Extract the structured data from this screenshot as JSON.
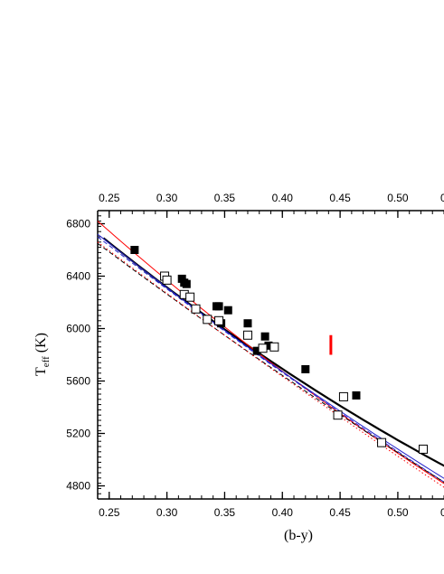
{
  "chart_data": {
    "type": "scatter",
    "title": "",
    "xlabel": "(b-y)",
    "ylabel": "T",
    "ylabel_sub": "eff",
    "ylabel_unit": " (K)",
    "xlim": [
      0.24,
      0.54
    ],
    "ylim": [
      4700,
      6900
    ],
    "x_ticks": [
      0.25,
      0.3,
      0.35,
      0.4,
      0.45,
      0.5
    ],
    "x_tick_labels": [
      "0.25",
      "0.30",
      "0.35",
      "0.40",
      "0.45",
      "0.50"
    ],
    "x_edge_label": "0",
    "y_ticks": [
      4800,
      5200,
      5600,
      6000,
      6400,
      6800
    ],
    "y_tick_labels": [
      "4800",
      "5200",
      "5600",
      "6000",
      "6400",
      "6800"
    ],
    "grid": false,
    "top_axis_mirrors_bottom": true,
    "series": [
      {
        "marker": "filled-square",
        "color": "#000000",
        "x": [
          0.272,
          0.313,
          0.315,
          0.317,
          0.343,
          0.345,
          0.347,
          0.353,
          0.37,
          0.378,
          0.385,
          0.388,
          0.42,
          0.464
        ],
        "y": [
          6600,
          6380,
          6350,
          6340,
          6170,
          6170,
          6040,
          6140,
          6040,
          5830,
          5940,
          5870,
          5690,
          5490
        ]
      },
      {
        "marker": "open-square",
        "color": "#000000",
        "x": [
          0.298,
          0.3,
          0.315,
          0.32,
          0.325,
          0.335,
          0.345,
          0.37,
          0.383,
          0.393,
          0.448,
          0.453,
          0.486,
          0.522
        ],
        "y": [
          6400,
          6370,
          6260,
          6240,
          6150,
          6070,
          6060,
          5950,
          5850,
          5860,
          5340,
          5480,
          5130,
          5080
        ]
      }
    ],
    "curves": [
      {
        "style": "solid",
        "color": "#000000",
        "width": 2.2,
        "x": [
          0.245,
          0.545
        ],
        "y": [
          6690,
          4930
        ],
        "bend": 0.05
      },
      {
        "style": "solid",
        "color": "#ff0000",
        "width": 1,
        "x": [
          0.24,
          0.545
        ],
        "y": [
          6820,
          4790
        ],
        "bend": 0.04
      },
      {
        "style": "solid",
        "color": "#2222cc",
        "width": 1,
        "x": [
          0.24,
          0.545
        ],
        "y": [
          6720,
          4830
        ],
        "bend": 0.03
      },
      {
        "style": "dashed",
        "color": "#2222cc",
        "width": 1,
        "x": [
          0.24,
          0.545
        ],
        "y": [
          6700,
          4800
        ],
        "bend": 0.02
      },
      {
        "style": "dashed",
        "color": "#000000",
        "width": 1,
        "x": [
          0.24,
          0.545
        ],
        "y": [
          6650,
          4800
        ],
        "bend": 0.02
      },
      {
        "style": "dotted",
        "color": "#ff0000",
        "width": 1,
        "x": [
          0.24,
          0.545
        ],
        "y": [
          6660,
          4760
        ],
        "bend": 0.015
      }
    ],
    "error_bar": {
      "color": "#ff0000",
      "x": 0.442,
      "y_center": 5875,
      "half_height": 75
    }
  }
}
